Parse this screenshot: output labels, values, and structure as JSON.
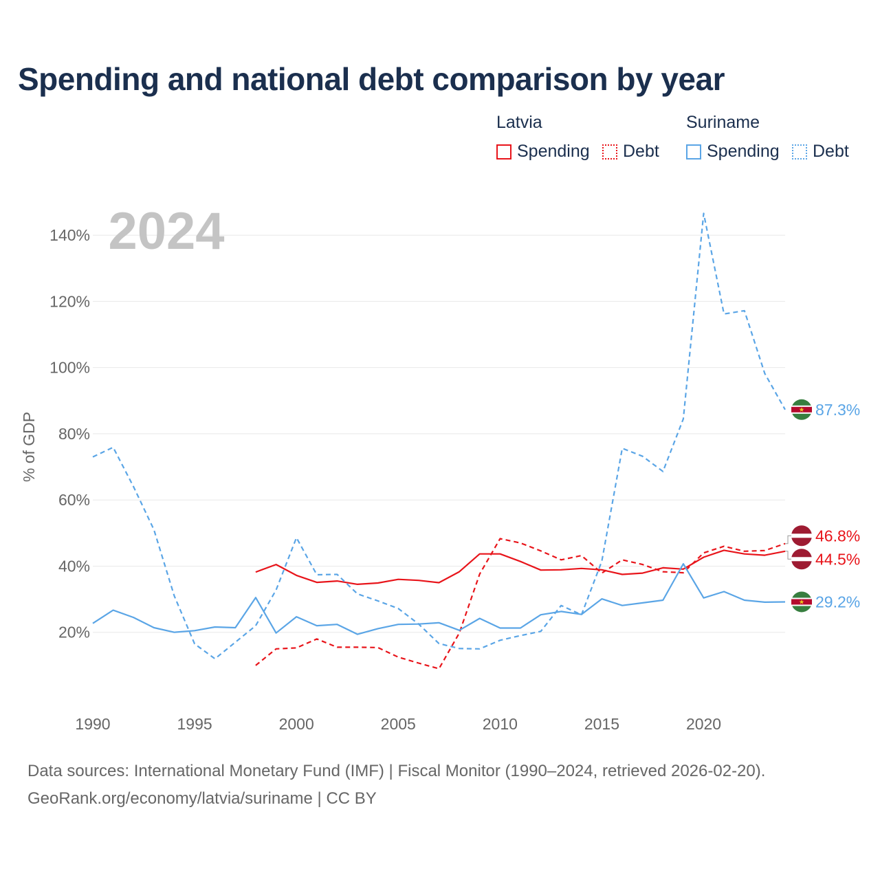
{
  "title": "Spending and national debt comparison by year",
  "legend": {
    "groups": [
      {
        "name": "Latvia",
        "color": "#e8141a",
        "items": [
          {
            "label": "Spending",
            "style": "solid"
          },
          {
            "label": "Debt",
            "style": "dotted"
          }
        ]
      },
      {
        "name": "Suriname",
        "color": "#5aa5e6",
        "items": [
          {
            "label": "Spending",
            "style": "solid"
          },
          {
            "label": "Debt",
            "style": "dotted"
          }
        ]
      }
    ]
  },
  "footer": {
    "line1": "Data sources: International Monetary Fund (IMF) | Fiscal Monitor (1990–2024, retrieved 2026-02-20).",
    "line2": "GeoRank.org/economy/latvia/suriname | CC BY"
  },
  "chart_data": {
    "type": "line",
    "year_label": "2024",
    "ylabel": "% of GDP",
    "xlim": [
      1990,
      2024
    ],
    "ylim": [
      0,
      150
    ],
    "xticks": [
      1990,
      1995,
      2000,
      2005,
      2010,
      2015,
      2020
    ],
    "yticks": [
      20,
      40,
      60,
      80,
      100,
      120,
      140
    ],
    "ytick_labels": [
      "20%",
      "40%",
      "60%",
      "80%",
      "100%",
      "120%",
      "140%"
    ],
    "series": [
      {
        "name": "Latvia Spending",
        "country": "Latvia",
        "color": "#e8141a",
        "dashed": false,
        "x": [
          1998,
          1999,
          2000,
          2001,
          2002,
          2003,
          2004,
          2005,
          2006,
          2007,
          2008,
          2009,
          2010,
          2011,
          2012,
          2013,
          2014,
          2015,
          2016,
          2017,
          2018,
          2019,
          2020,
          2021,
          2022,
          2023,
          2024
        ],
        "values": [
          38.2,
          40.5,
          37.2,
          35.1,
          35.5,
          34.5,
          34.9,
          36.0,
          35.7,
          35.0,
          38.3,
          43.7,
          43.7,
          41.4,
          38.8,
          38.9,
          39.3,
          38.9,
          37.5,
          37.9,
          39.5,
          39.1,
          42.7,
          44.8,
          43.7,
          43.3,
          44.5
        ],
        "end_label": "44.5%"
      },
      {
        "name": "Latvia Debt",
        "country": "Latvia",
        "color": "#e8141a",
        "dashed": true,
        "x": [
          1998,
          1999,
          2000,
          2001,
          2002,
          2003,
          2004,
          2005,
          2006,
          2007,
          2008,
          2009,
          2010,
          2011,
          2012,
          2013,
          2014,
          2015,
          2016,
          2017,
          2018,
          2019,
          2020,
          2021,
          2022,
          2023,
          2024
        ],
        "values": [
          10.0,
          15.0,
          15.3,
          18.0,
          15.5,
          15.5,
          15.4,
          12.5,
          10.7,
          9.0,
          19.8,
          37.6,
          48.3,
          47.0,
          44.6,
          41.9,
          43.2,
          37.9,
          41.9,
          40.5,
          38.3,
          38.0,
          44.0,
          46.0,
          44.5,
          44.7,
          46.8
        ],
        "end_label": "46.8%"
      },
      {
        "name": "Suriname Spending",
        "country": "Suriname",
        "color": "#5aa5e6",
        "dashed": false,
        "x": [
          1990,
          1991,
          1992,
          1993,
          1994,
          1995,
          1996,
          1997,
          1998,
          1999,
          2000,
          2001,
          2002,
          2003,
          2004,
          2005,
          2006,
          2007,
          2008,
          2009,
          2010,
          2011,
          2012,
          2013,
          2014,
          2015,
          2016,
          2017,
          2018,
          2019,
          2020,
          2021,
          2022,
          2023,
          2024
        ],
        "values": [
          22.7,
          26.7,
          24.5,
          21.4,
          20.0,
          20.5,
          21.6,
          21.4,
          30.5,
          19.8,
          24.7,
          22.0,
          22.4,
          19.4,
          21.1,
          22.4,
          22.5,
          22.9,
          20.6,
          24.2,
          21.3,
          21.3,
          25.3,
          26.3,
          25.4,
          30.1,
          28.1,
          28.9,
          29.7,
          40.7,
          30.4,
          32.3,
          29.7,
          29.1,
          29.2
        ],
        "end_label": "29.2%"
      },
      {
        "name": "Suriname Debt",
        "country": "Suriname",
        "color": "#5aa5e6",
        "dashed": true,
        "x": [
          1990,
          1991,
          1992,
          1993,
          1994,
          1995,
          1996,
          1997,
          1998,
          1999,
          2000,
          2001,
          2002,
          2003,
          2004,
          2005,
          2006,
          2007,
          2008,
          2009,
          2010,
          2011,
          2012,
          2013,
          2014,
          2015,
          2016,
          2017,
          2018,
          2019,
          2020,
          2021,
          2022,
          2023,
          2024
        ],
        "values": [
          73.0,
          75.9,
          64.0,
          51.0,
          31.0,
          16.5,
          12.0,
          17.0,
          22.0,
          32.8,
          48.6,
          37.4,
          37.5,
          31.6,
          29.5,
          27.2,
          22.5,
          16.6,
          15.1,
          15.0,
          17.6,
          19.0,
          20.3,
          28.1,
          25.3,
          41.5,
          75.6,
          73.2,
          68.6,
          84.5,
          146.6,
          116.2,
          117.2,
          98.2,
          87.3
        ],
        "end_label": "87.3%"
      }
    ]
  }
}
